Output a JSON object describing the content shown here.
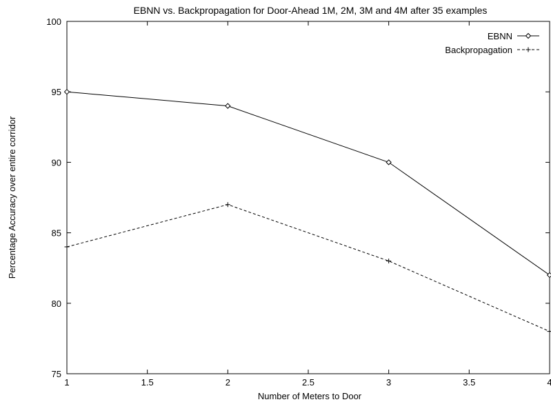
{
  "chart_data": {
    "type": "line",
    "title": "EBNN vs. Backpropagation for Door-Ahead 1M, 2M, 3M and 4M after 35 examples",
    "xlabel": "Number of Meters to Door",
    "ylabel": "Percentage Accuracy over entire corridor",
    "xlim": [
      1,
      4
    ],
    "ylim": [
      75,
      100
    ],
    "x_ticks": [
      "1",
      "1.5",
      "2",
      "2.5",
      "3",
      "3.5",
      "4"
    ],
    "y_ticks": [
      "75",
      "80",
      "85",
      "90",
      "95",
      "100"
    ],
    "grid": false,
    "legend_position": "top-right",
    "series": [
      {
        "name": "EBNN",
        "x": [
          1,
          2,
          3,
          4
        ],
        "values": [
          95,
          94,
          90,
          82
        ],
        "line_style": "solid",
        "marker": "diamond",
        "color": "#000000"
      },
      {
        "name": "Backpropagation",
        "x": [
          1,
          2,
          3,
          4
        ],
        "values": [
          84,
          87,
          83,
          78
        ],
        "line_style": "dashed",
        "marker": "plus",
        "color": "#000000"
      }
    ]
  }
}
